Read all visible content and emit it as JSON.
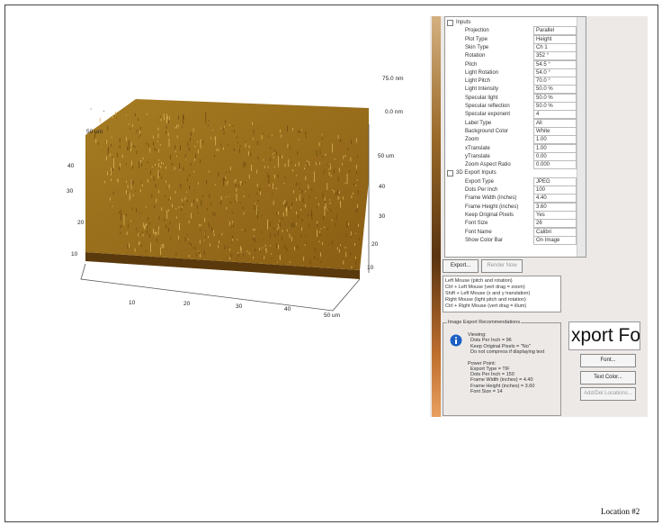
{
  "plot": {
    "z_labels": [
      "75.0 nm",
      "0.0 nm"
    ],
    "left_axis": [
      "50 um",
      "40",
      "30",
      "20",
      "10"
    ],
    "right_axis": [
      "50 um",
      "40",
      "30",
      "20",
      "10"
    ],
    "bottom_axis": [
      "10",
      "20",
      "30",
      "40",
      "50 um"
    ]
  },
  "properties": {
    "sections": [
      {
        "title": "Inputs",
        "rows": [
          {
            "name": "Projection",
            "value": "Parallel"
          },
          {
            "name": "Plot Type",
            "value": "Height"
          },
          {
            "name": "Skin Type",
            "value": "Ch 1"
          },
          {
            "name": "Rotation",
            "value": "352 °"
          },
          {
            "name": "Pitch",
            "value": "54.5 °"
          },
          {
            "name": "Light Rotation",
            "value": "54.0 °"
          },
          {
            "name": "Light Pitch",
            "value": "70.0 °"
          },
          {
            "name": "Light Intensity",
            "value": "50.0 %"
          },
          {
            "name": "Specular light",
            "value": "50.0 %"
          },
          {
            "name": "Specular reflection",
            "value": "50.0 %"
          },
          {
            "name": "Specular exponent",
            "value": "4"
          },
          {
            "name": "Label Type",
            "value": "All"
          },
          {
            "name": "Background Color",
            "value": "White"
          },
          {
            "name": "Zoom",
            "value": "1.00"
          },
          {
            "name": "xTranslate",
            "value": "1.00"
          },
          {
            "name": "yTranslate",
            "value": "0.00"
          },
          {
            "name": "Zoom Aspect Ratio",
            "value": "0.000"
          }
        ]
      },
      {
        "title": "3D Export Inputs",
        "rows": [
          {
            "name": "Export Type",
            "value": "JPEG"
          },
          {
            "name": "Dots Per Inch",
            "value": "100"
          },
          {
            "name": "Frame Width (inches)",
            "value": "4.40"
          },
          {
            "name": "Frame Height (inches)",
            "value": "3.60"
          },
          {
            "name": "Keep Original Pixels",
            "value": "Yes"
          },
          {
            "name": "Font Size",
            "value": "26"
          },
          {
            "name": "Font Name",
            "value": "Calibri"
          },
          {
            "name": "Show Color Bar",
            "value": "On Image"
          }
        ]
      }
    ]
  },
  "buttons": {
    "export": "Export...",
    "render": "Render Now"
  },
  "help_lines": [
    "Left Mouse (pitch and rotation)",
    "Ctrl + Left Mouse (vert drag = zoom)",
    "Shift + Left Mouse (x and y translation)",
    "Right Mouse (light pitch and rotation)",
    "Ctrl + Right Mouse (vert drag = illum)"
  ],
  "recommendations": {
    "title": "Image Export Recommendations",
    "viewing": [
      "Viewing:",
      "Dots Per Inch = 96",
      "Keep Original Pixels = \"No\"",
      "Do not compress if displaying text"
    ],
    "power_point": [
      "Power Point:",
      "Export Type = TIF",
      "Dots Per Inch = 150",
      "Frame Width (inches) = 4.40",
      "Frame Height (inches) = 3.60",
      "Font Size = 14"
    ]
  },
  "font_preview": "xport For",
  "side_buttons": {
    "font": "Font...",
    "text_color": "Text Color...",
    "locations": "Add/Del Locations..."
  },
  "location": "Location #2"
}
